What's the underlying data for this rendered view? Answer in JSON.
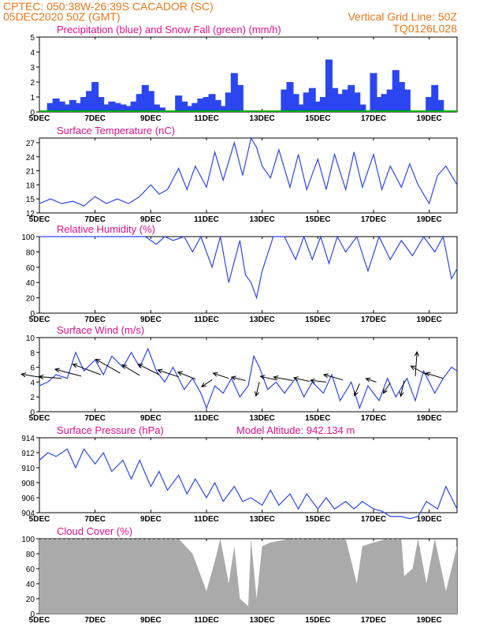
{
  "header": {
    "line1": "CPTEC:    050:38W-26:39S   CACADOR (SC)",
    "line2": "05DEC2020  50Z (GMT)",
    "grid_note": "Vertical Grid Line: 50Z",
    "code": "TQ0126L028"
  },
  "colors": {
    "header": "#e8761a",
    "title": "#e0108a",
    "series_blue": "#2b46f0",
    "snow_green": "#00b000",
    "cloud_gray": "#aaaaaa",
    "arrow": "#000000"
  },
  "x_axis": {
    "ticks": [
      "5DEC",
      "7DEC",
      "9DEC",
      "11DEC",
      "13DEC",
      "15DEC",
      "17DEC",
      "19DEC"
    ],
    "range_days": [
      5,
      20
    ]
  },
  "chart_data": [
    {
      "id": "precip",
      "type": "bar",
      "title": "Precipitation (blue) and Snow Fall (green) (mm/h)",
      "ylim": [
        0,
        5
      ],
      "yticks": [
        0,
        1,
        2,
        3,
        4,
        5
      ],
      "series": [
        {
          "name": "Precipitation",
          "color": "#2b46f0",
          "x": [
            5.4,
            5.6,
            5.8,
            6.0,
            6.2,
            6.4,
            6.6,
            6.8,
            7.0,
            7.2,
            7.4,
            7.6,
            7.8,
            8.0,
            8.2,
            8.4,
            8.6,
            8.8,
            9.0,
            9.2,
            9.4,
            10.0,
            10.2,
            10.4,
            10.6,
            10.8,
            11.0,
            11.2,
            11.4,
            11.6,
            11.8,
            12.0,
            12.2,
            13.8,
            14.0,
            14.2,
            14.4,
            14.6,
            14.8,
            15.0,
            15.2,
            15.4,
            15.6,
            15.8,
            16.0,
            16.2,
            16.4,
            16.6,
            17.0,
            17.2,
            17.4,
            17.6,
            17.8,
            18.0,
            18.2,
            19.0,
            19.2,
            19.4
          ],
          "values": [
            0.6,
            0.9,
            0.7,
            0.5,
            0.8,
            0.6,
            1.0,
            1.4,
            2.0,
            1.0,
            0.5,
            0.7,
            0.6,
            0.5,
            0.4,
            0.7,
            1.2,
            1.8,
            1.4,
            0.5,
            0.3,
            1.1,
            0.7,
            0.4,
            0.6,
            0.9,
            1.0,
            1.2,
            0.8,
            0.4,
            1.3,
            2.6,
            1.8,
            1.5,
            2.0,
            1.2,
            0.5,
            1.3,
            1.6,
            0.7,
            1.0,
            3.5,
            1.6,
            1.2,
            1.5,
            1.8,
            1.3,
            0.5,
            2.6,
            1.0,
            1.2,
            1.5,
            2.8,
            2.0,
            1.5,
            1.0,
            1.8,
            0.8
          ]
        },
        {
          "name": "Snow Fall",
          "color": "#00b000",
          "x": [],
          "values": []
        }
      ]
    },
    {
      "id": "temp",
      "type": "line",
      "title": "Surface Temperature (nC)",
      "ylim": [
        12,
        28
      ],
      "yticks": [
        12,
        15,
        18,
        21,
        24,
        27
      ],
      "x": [
        5.0,
        5.4,
        5.8,
        6.2,
        6.6,
        7.0,
        7.4,
        7.8,
        8.2,
        8.6,
        9.0,
        9.3,
        9.6,
        10.0,
        10.3,
        10.6,
        11.0,
        11.3,
        11.6,
        12.0,
        12.3,
        12.6,
        12.8,
        13.0,
        13.3,
        13.6,
        14.0,
        14.3,
        14.6,
        15.0,
        15.3,
        15.6,
        16.0,
        16.3,
        16.6,
        17.0,
        17.3,
        17.6,
        18.0,
        18.3,
        18.6,
        19.0,
        19.3,
        19.6,
        20.0
      ],
      "values": [
        14.0,
        15.0,
        14.0,
        14.5,
        13.5,
        15.5,
        14.0,
        15.0,
        14.0,
        15.5,
        18.0,
        16.0,
        17.0,
        21.5,
        17.0,
        22.0,
        17.5,
        25.0,
        19.0,
        27.0,
        20.0,
        28.0,
        26.0,
        22.0,
        19.5,
        25.5,
        17.5,
        24.5,
        17.0,
        23.5,
        17.0,
        24.5,
        17.0,
        25.0,
        17.5,
        24.5,
        17.0,
        22.0,
        17.5,
        22.5,
        18.0,
        14.0,
        20.0,
        22.0,
        18.0
      ]
    },
    {
      "id": "rh",
      "type": "line",
      "title": "Relative Humidity (%)",
      "ylim": [
        0,
        100
      ],
      "yticks": [
        0,
        20,
        40,
        60,
        80,
        100
      ],
      "x": [
        5.0,
        6.0,
        7.0,
        8.0,
        8.8,
        9.2,
        9.5,
        9.8,
        10.2,
        10.5,
        10.8,
        11.2,
        11.5,
        11.8,
        12.2,
        12.4,
        12.6,
        12.8,
        13.0,
        13.4,
        13.8,
        14.2,
        14.5,
        14.8,
        15.1,
        15.4,
        15.7,
        16.0,
        16.4,
        16.8,
        17.2,
        17.6,
        18.0,
        18.4,
        18.8,
        19.2,
        19.5,
        19.8,
        20.0
      ],
      "values": [
        100,
        100,
        100,
        100,
        100,
        90,
        100,
        95,
        100,
        80,
        100,
        60,
        100,
        40,
        95,
        50,
        40,
        20,
        55,
        100,
        100,
        70,
        100,
        70,
        100,
        65,
        100,
        80,
        100,
        55,
        100,
        70,
        95,
        75,
        100,
        80,
        100,
        45,
        58
      ]
    },
    {
      "id": "wind",
      "type": "line",
      "title": "Surface Wind (m/s)",
      "ylim": [
        0,
        10
      ],
      "yticks": [
        0,
        2,
        4,
        6,
        8,
        10
      ],
      "x": [
        5.0,
        5.3,
        5.6,
        6.0,
        6.3,
        6.6,
        7.0,
        7.3,
        7.6,
        8.0,
        8.3,
        8.6,
        8.9,
        9.2,
        9.5,
        9.8,
        10.2,
        10.5,
        10.8,
        11.0,
        11.3,
        11.6,
        11.9,
        12.2,
        12.5,
        12.7,
        12.9,
        13.2,
        13.5,
        13.8,
        14.2,
        14.5,
        14.8,
        15.2,
        15.5,
        15.8,
        16.2,
        16.5,
        16.8,
        17.2,
        17.5,
        17.8,
        18.2,
        18.5,
        18.8,
        19.2,
        19.5,
        19.8,
        20.0
      ],
      "values": [
        3.5,
        4.0,
        5.0,
        4.5,
        8.0,
        5.5,
        7.0,
        5.0,
        7.5,
        6.0,
        8.0,
        6.0,
        8.5,
        5.5,
        4.0,
        6.0,
        3.0,
        4.5,
        2.5,
        0.5,
        3.5,
        2.5,
        4.5,
        2.0,
        3.5,
        7.5,
        6.0,
        3.0,
        4.0,
        2.5,
        4.5,
        2.0,
        4.0,
        2.5,
        5.0,
        1.5,
        4.0,
        0.5,
        3.5,
        1.5,
        4.5,
        2.0,
        4.5,
        1.5,
        5.5,
        2.5,
        4.5,
        6.0,
        5.5
      ],
      "arrows": {
        "x": [
          5.1,
          5.8,
          6.5,
          7.2,
          7.9,
          8.6,
          9.3,
          10.0,
          10.6,
          11.2,
          11.8,
          12.4,
          12.9,
          13.5,
          14.1,
          14.7,
          15.3,
          15.9,
          16.5,
          17.1,
          17.6,
          18.1,
          18.5,
          18.9,
          19.5
        ],
        "y": [
          4.6,
          4.5,
          4.8,
          5.0,
          5.2,
          4.9,
          5.0,
          4.7,
          4.4,
          4.3,
          4.5,
          4.2,
          4.0,
          4.3,
          4.2,
          4.1,
          4.0,
          4.3,
          3.8,
          4.0,
          3.9,
          4.2,
          4.8,
          5.0,
          4.5
        ],
        "u": [
          -1.2,
          -1.3,
          -1.5,
          -1.6,
          -1.4,
          -1.0,
          -1.2,
          -1.2,
          -1.0,
          -0.6,
          -0.9,
          -0.8,
          -0.2,
          -0.9,
          -1.1,
          -0.9,
          -0.9,
          -1.1,
          -0.3,
          -0.6,
          -0.4,
          -0.2,
          0.1,
          -0.9,
          -1.0
        ],
        "v": [
          0.2,
          0.1,
          0.4,
          0.6,
          0.8,
          0.6,
          0.6,
          0.4,
          0.4,
          -0.4,
          0.3,
          0.2,
          -0.8,
          0.2,
          0.2,
          0.2,
          0.1,
          0.3,
          -0.7,
          0.2,
          -0.6,
          -0.9,
          1.4,
          0.5,
          0.3
        ]
      }
    },
    {
      "id": "pressure",
      "type": "line",
      "title": "Surface Pressure (hPa)",
      "annotation": "Model Altitude: 942.134 m",
      "ylim": [
        904,
        914
      ],
      "yticks": [
        904,
        906,
        908,
        910,
        912,
        914
      ],
      "x": [
        5.0,
        5.3,
        5.6,
        6.0,
        6.3,
        6.6,
        7.0,
        7.3,
        7.6,
        8.0,
        8.3,
        8.6,
        9.0,
        9.3,
        9.6,
        10.0,
        10.3,
        10.6,
        11.0,
        11.3,
        11.6,
        12.0,
        12.3,
        12.6,
        13.0,
        13.3,
        13.6,
        14.0,
        14.3,
        14.6,
        15.0,
        15.3,
        15.6,
        16.0,
        16.3,
        16.6,
        17.0,
        17.3,
        17.6,
        18.0,
        18.3,
        18.6,
        18.9,
        19.3,
        19.6,
        20.0
      ],
      "values": [
        911,
        912,
        911.5,
        912.5,
        910,
        912.5,
        910.5,
        912,
        909.5,
        911,
        908.5,
        911,
        907.5,
        909.5,
        907,
        909,
        906.5,
        908.5,
        906,
        908,
        905.5,
        907.5,
        905.5,
        906,
        905,
        907,
        905,
        906.5,
        904.5,
        906.5,
        904.5,
        906,
        904.5,
        905.5,
        904.5,
        905.5,
        904.5,
        904.2,
        903.5,
        903.5,
        903.2,
        903.5,
        905.5,
        904.5,
        907.5,
        904.5
      ]
    },
    {
      "id": "cloud",
      "type": "area",
      "title": "Cloud Cover (%)",
      "ylim": [
        0,
        100
      ],
      "yticks": [
        0,
        20,
        40,
        60,
        80,
        100
      ],
      "x": [
        5.0,
        9.5,
        10.0,
        10.5,
        11.0,
        11.3,
        11.5,
        11.8,
        12.0,
        12.2,
        12.5,
        12.6,
        12.8,
        13.0,
        13.3,
        14.0,
        15.0,
        16.0,
        16.4,
        16.6,
        17.0,
        17.5,
        18.0,
        18.1,
        18.4,
        18.6,
        18.9,
        19.2,
        19.6,
        20.0
      ],
      "values": [
        100,
        100,
        100,
        80,
        30,
        70,
        100,
        40,
        90,
        20,
        10,
        100,
        20,
        90,
        95,
        100,
        100,
        100,
        40,
        90,
        95,
        100,
        100,
        50,
        60,
        100,
        40,
        100,
        30,
        90
      ]
    }
  ]
}
